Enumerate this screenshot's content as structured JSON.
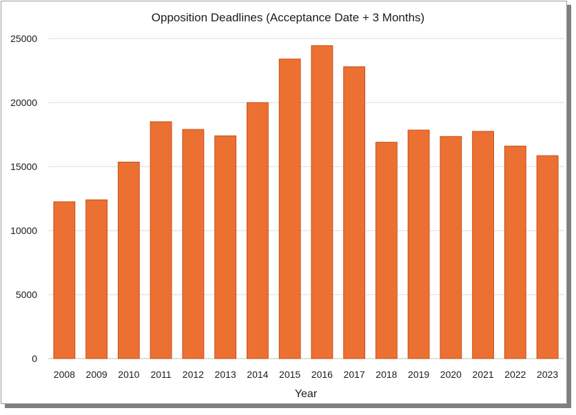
{
  "chart_data": {
    "type": "bar",
    "title": "Opposition Deadlines (Acceptance  Date + 3 Months)",
    "xlabel": "Year",
    "ylabel": "",
    "categories": [
      "2008",
      "2009",
      "2010",
      "2011",
      "2012",
      "2013",
      "2014",
      "2015",
      "2016",
      "2017",
      "2018",
      "2019",
      "2020",
      "2021",
      "2022",
      "2023"
    ],
    "values": [
      12250,
      12400,
      15350,
      18500,
      17900,
      17400,
      20000,
      23400,
      24450,
      22800,
      16900,
      17850,
      17350,
      17750,
      16600,
      15850
    ],
    "ylim": [
      0,
      25000
    ],
    "yticks": [
      "0",
      "5000",
      "10000",
      "15000",
      "20000",
      "25000"
    ],
    "grid": true,
    "legend": "none",
    "bar_color": "#ED7033",
    "bar_edge_color": "#C4501A"
  }
}
